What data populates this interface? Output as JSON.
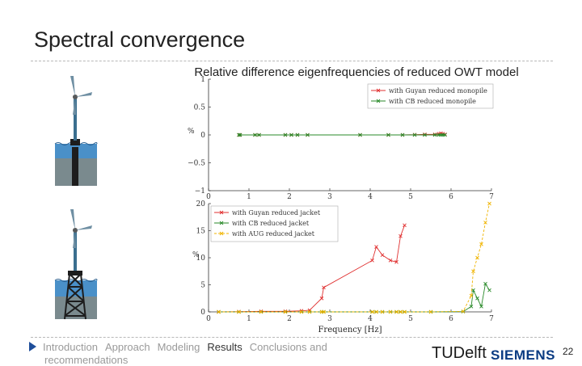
{
  "slide": {
    "title": "Spectral convergence",
    "page_number": "22"
  },
  "nav": {
    "items": [
      {
        "label": "Introduction",
        "active": false
      },
      {
        "label": "Approach",
        "active": false
      },
      {
        "label": "Modeling",
        "active": false
      },
      {
        "label": "Results",
        "active": true
      },
      {
        "label": "Conclusions and",
        "active": false
      }
    ],
    "wrap": "recommendations"
  },
  "logos": {
    "tudelft": "TUDelft",
    "siemens": "SIEMENS"
  },
  "colors": {
    "sea": "#4a90c8",
    "seabed": "#7a8a8e",
    "tower": "#1d1d1d",
    "red": "#e03030",
    "green": "#2a8a2a",
    "yellow": "#f0b400",
    "nav_arrow": "#1f4e9a",
    "siemens": "#0a3b82"
  },
  "chart_data": [
    {
      "type": "line",
      "title": "Relative difference eigenfrequencies of reduced OWT model",
      "xlabel": "",
      "ylabel": "%",
      "xlim": [
        0,
        7
      ],
      "ylim": [
        -1,
        1
      ],
      "xticks": [
        "0",
        "1",
        "2",
        "3",
        "4",
        "5",
        "6",
        "7"
      ],
      "yticks": [
        "−1",
        "−0.5",
        "0",
        "0.5",
        "1"
      ],
      "legend_position": "top-right",
      "grid": false,
      "series": [
        {
          "name": "with Guyan reduced monopile",
          "color": "#e03030",
          "x": [
            0.75,
            0.78,
            1.15,
            1.25,
            1.9,
            2.05,
            2.2,
            2.45,
            3.75,
            4.45,
            4.8,
            5.1,
            5.35,
            5.6,
            5.7,
            5.75,
            5.8,
            5.85
          ],
          "y": [
            0,
            0,
            0,
            0,
            0,
            0,
            0,
            0,
            0,
            0,
            0,
            0.005,
            0.01,
            0.01,
            0.02,
            0.03,
            0.02,
            0.01
          ]
        },
        {
          "name": "with CB reduced monopile",
          "color": "#2a8a2a",
          "x": [
            0.75,
            0.78,
            1.15,
            1.25,
            1.9,
            2.05,
            2.2,
            2.45,
            3.75,
            4.45,
            4.8,
            5.1,
            5.35,
            5.6,
            5.7,
            5.75,
            5.8,
            5.85
          ],
          "y": [
            0,
            0,
            0,
            0,
            0,
            0,
            0,
            0,
            0,
            0,
            0,
            0,
            0,
            0,
            0,
            0,
            0,
            0
          ]
        }
      ]
    },
    {
      "type": "line",
      "title": "",
      "xlabel": "Frequency [Hz]",
      "ylabel": "%",
      "xlim": [
        0,
        7
      ],
      "ylim": [
        0,
        20
      ],
      "xticks": [
        "0",
        "1",
        "2",
        "3",
        "4",
        "5",
        "6",
        "7"
      ],
      "yticks": [
        "0",
        "5",
        "10",
        "15",
        "20"
      ],
      "legend_position": "top-left",
      "grid": false,
      "series": [
        {
          "name": "with Guyan reduced jacket",
          "color": "#e03030",
          "x": [
            0.25,
            0.75,
            1.3,
            1.9,
            2.3,
            2.5,
            2.8,
            2.85,
            4.05,
            4.15,
            4.3,
            4.5,
            4.65,
            4.75,
            4.85
          ],
          "y": [
            0,
            0.05,
            0.1,
            0.1,
            0.2,
            0.3,
            2.5,
            4.5,
            9.5,
            12,
            10.5,
            9.5,
            9.2,
            14,
            16
          ]
        },
        {
          "name": "with CB reduced jacket",
          "color": "#2a8a2a",
          "x": [
            0.25,
            0.75,
            1.3,
            1.9,
            2.3,
            2.5,
            2.8,
            2.85,
            4.05,
            4.15,
            4.3,
            4.5,
            4.65,
            4.75,
            4.85,
            5.5,
            6.3,
            6.5,
            6.55,
            6.65,
            6.75,
            6.85,
            6.95
          ],
          "y": [
            0,
            0,
            0,
            0,
            0,
            0,
            0,
            0,
            0,
            0,
            0,
            0,
            0,
            0,
            0,
            0,
            0.05,
            1,
            4,
            2.5,
            1,
            5.2,
            4
          ]
        },
        {
          "name": "with AUG reduced jacket",
          "color": "#f0b400",
          "x": [
            0.25,
            0.75,
            1.3,
            1.9,
            2.3,
            2.5,
            2.8,
            2.85,
            4.05,
            4.15,
            4.3,
            4.5,
            4.65,
            4.75,
            4.85,
            5.5,
            6.3,
            6.5,
            6.55,
            6.65,
            6.75,
            6.85,
            6.95
          ],
          "y": [
            0,
            0,
            0,
            0,
            0,
            0,
            0,
            0,
            0,
            0,
            0,
            0,
            0,
            0,
            0,
            0,
            0.1,
            3,
            7.5,
            10,
            12.5,
            16.5,
            20
          ]
        }
      ]
    }
  ]
}
